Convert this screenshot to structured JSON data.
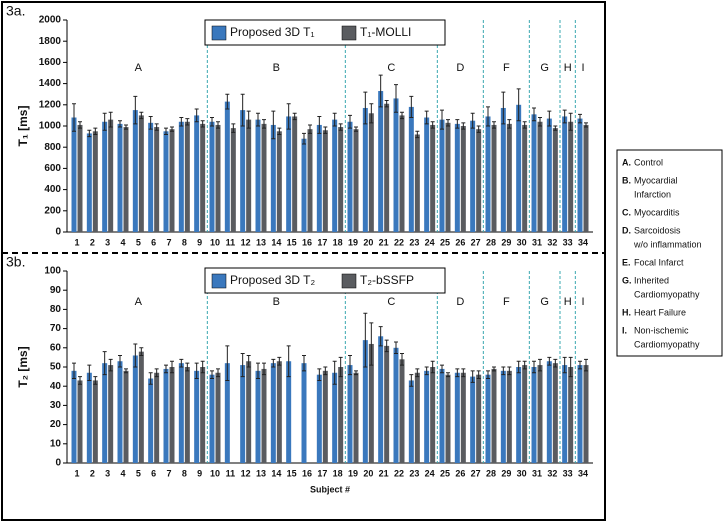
{
  "chart_data": [
    {
      "type": "bar",
      "title": "3a.",
      "ylabel": "T₁ [ms]",
      "categories": [
        "1",
        "2",
        "3",
        "4",
        "5",
        "6",
        "7",
        "8",
        "9",
        "10",
        "11",
        "12",
        "13",
        "14",
        "15",
        "16",
        "17",
        "18",
        "19",
        "20",
        "21",
        "22",
        "23",
        "24",
        "25",
        "26",
        "27",
        "28",
        "29",
        "30",
        "31",
        "32",
        "33",
        "34"
      ],
      "series": [
        {
          "name": "Proposed 3D T₁",
          "color": "#3a78bd",
          "values": [
            1080,
            930,
            1040,
            1020,
            1150,
            1030,
            950,
            1040,
            1100,
            1040,
            1230,
            1150,
            1060,
            1010,
            1090,
            880,
            1010,
            1060,
            1040,
            1170,
            1330,
            1260,
            1180,
            1080,
            1060,
            1020,
            1050,
            1090,
            1170,
            1200,
            1110,
            1070,
            1090,
            1070
          ],
          "errors": [
            130,
            30,
            80,
            30,
            130,
            60,
            30,
            40,
            60,
            40,
            70,
            150,
            60,
            130,
            120,
            50,
            80,
            60,
            60,
            150,
            150,
            130,
            100,
            60,
            90,
            40,
            70,
            90,
            150,
            150,
            60,
            70,
            60,
            40
          ]
        },
        {
          "name": "T₁-MOLLI",
          "color": "#5a5c60",
          "values": [
            1010,
            950,
            1060,
            990,
            1100,
            990,
            970,
            1040,
            1020,
            1010,
            980,
            1060,
            1020,
            950,
            1090,
            970,
            960,
            990,
            970,
            1120,
            1210,
            1100,
            920,
            1010,
            1030,
            1000,
            970,
            1010,
            1020,
            1010,
            1040,
            980,
            1040,
            1010
          ],
          "errors": [
            30,
            30,
            70,
            20,
            30,
            30,
            20,
            30,
            30,
            30,
            40,
            80,
            40,
            30,
            30,
            40,
            30,
            30,
            20,
            90,
            30,
            30,
            30,
            30,
            30,
            30,
            30,
            30,
            40,
            30,
            40,
            20,
            80,
            20
          ]
        }
      ],
      "groups": [
        {
          "label": "A",
          "from": 1,
          "to": 9
        },
        {
          "label": "B",
          "from": 10,
          "to": 18
        },
        {
          "label": "C",
          "from": 19,
          "to": 24
        },
        {
          "label": "D",
          "from": 25,
          "to": 27
        },
        {
          "label": "F",
          "from": 28,
          "to": 30
        },
        {
          "label": "G",
          "from": 31,
          "to": 32
        },
        {
          "label": "H",
          "from": 33,
          "to": 33
        },
        {
          "label": "I",
          "from": 34,
          "to": 34
        }
      ],
      "ylim": [
        0,
        2000
      ],
      "yticks": [
        0,
        200,
        400,
        600,
        800,
        1000,
        1200,
        1400,
        1600,
        1800,
        2000
      ]
    },
    {
      "type": "bar",
      "title": "3b.",
      "ylabel": "T₂ [ms]",
      "xlabel": "Subject #",
      "categories": [
        "1",
        "2",
        "3",
        "4",
        "5",
        "6",
        "7",
        "8",
        "9",
        "10",
        "11",
        "12",
        "13",
        "14",
        "15",
        "16",
        "17",
        "18",
        "19",
        "20",
        "21",
        "22",
        "23",
        "24",
        "25",
        "26",
        "27",
        "28",
        "29",
        "30",
        "31",
        "32",
        "33",
        "34"
      ],
      "series": [
        {
          "name": "Proposed 3D T₂",
          "color": "#3a78bd",
          "values": [
            48,
            47,
            52,
            53,
            56,
            44,
            49,
            52,
            48,
            46,
            52,
            51,
            48,
            52,
            53,
            52,
            46,
            47,
            51,
            64,
            66,
            60,
            43,
            48,
            49,
            47,
            45,
            46,
            48,
            50,
            50,
            53,
            51,
            51
          ],
          "errors": [
            4,
            4,
            6,
            3,
            6,
            3,
            2,
            2,
            4,
            2,
            9,
            6,
            4,
            2,
            8,
            4,
            3,
            6,
            5,
            14,
            5,
            3,
            3,
            2,
            2,
            2,
            3,
            2,
            2,
            3,
            3,
            2,
            4,
            2
          ]
        },
        {
          "name": "T₂-bSSFP",
          "color": "#5a5c60",
          "values": [
            43,
            43,
            51,
            48,
            58,
            47,
            50,
            50,
            50,
            47,
            null,
            53,
            49,
            53,
            null,
            null,
            48,
            50,
            47,
            62,
            61,
            54,
            47,
            50,
            46,
            47,
            46,
            49,
            48,
            51,
            51,
            52,
            50,
            51
          ],
          "errors": [
            2,
            2,
            3,
            1,
            2,
            2,
            3,
            2,
            3,
            2,
            null,
            3,
            3,
            2,
            null,
            null,
            2,
            5,
            1,
            11,
            3,
            3,
            2,
            3,
            1,
            2,
            2,
            1,
            2,
            2,
            3,
            2,
            5,
            3
          ]
        }
      ],
      "groups": [
        {
          "label": "A",
          "from": 1,
          "to": 9
        },
        {
          "label": "B",
          "from": 10,
          "to": 18
        },
        {
          "label": "C",
          "from": 19,
          "to": 24
        },
        {
          "label": "D",
          "from": 25,
          "to": 27
        },
        {
          "label": "F",
          "from": 28,
          "to": 30
        },
        {
          "label": "G",
          "from": 31,
          "to": 32
        },
        {
          "label": "H",
          "from": 33,
          "to": 33
        },
        {
          "label": "I",
          "from": 34,
          "to": 34
        }
      ],
      "ylim": [
        0,
        100
      ],
      "yticks": [
        0,
        10,
        20,
        30,
        40,
        50,
        60,
        70,
        80,
        90,
        100
      ]
    }
  ],
  "key": {
    "items": [
      {
        "key": "A.",
        "lines": [
          "Control"
        ]
      },
      {
        "key": "B.",
        "lines": [
          "Myocardial",
          "Infarction"
        ]
      },
      {
        "key": "C.",
        "lines": [
          "Myocarditis"
        ]
      },
      {
        "key": "D.",
        "lines": [
          "Sarcoidosis",
          "w/o inflammation"
        ]
      },
      {
        "key": "E.",
        "lines": [
          "Focal Infarct"
        ]
      },
      {
        "key": "G.",
        "lines": [
          "Inherited",
          "Cardiomyopathy"
        ]
      },
      {
        "key": "H.",
        "lines": [
          "Heart Failure"
        ]
      },
      {
        "key": "I.",
        "lines": [
          "Non-ischemic",
          "Cardiomyopathy"
        ]
      }
    ]
  }
}
